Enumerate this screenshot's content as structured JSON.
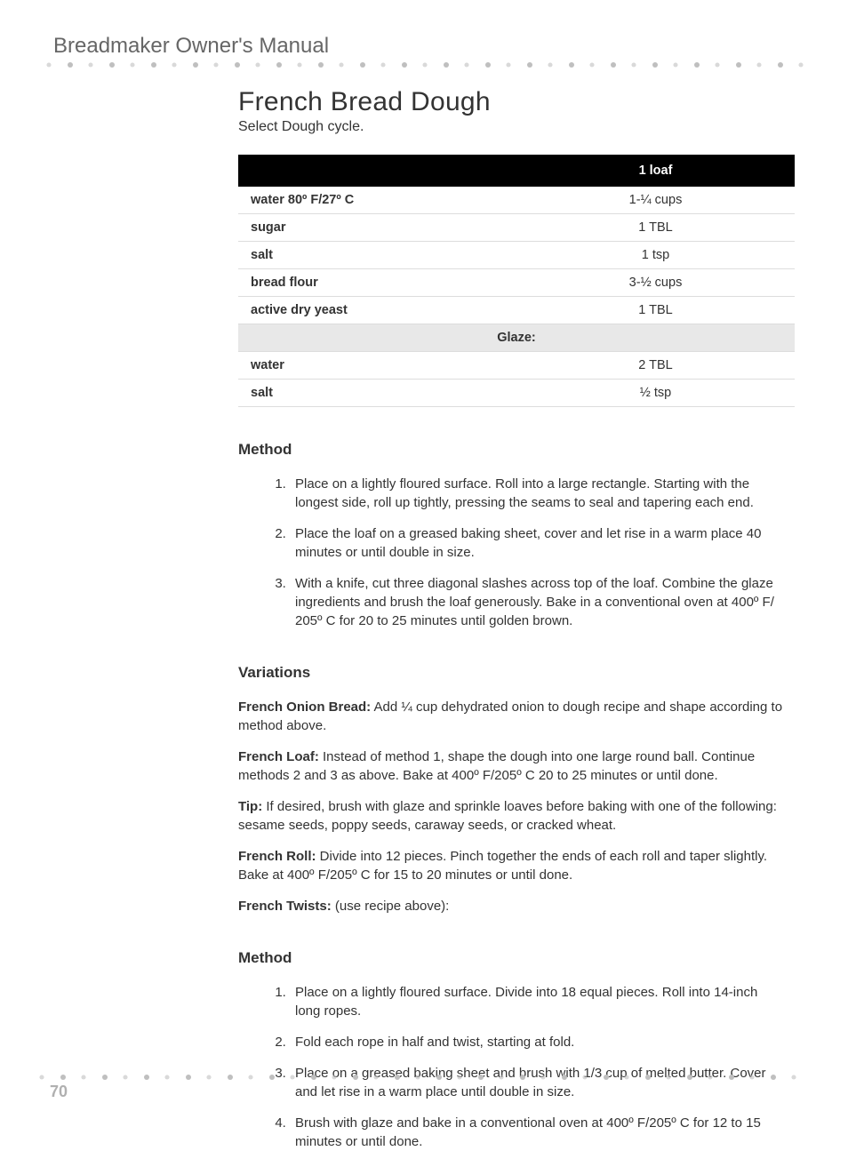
{
  "doc_header": "Breadmaker Owner's Manual",
  "page_number": "70",
  "recipe": {
    "title": "French Bread Dough",
    "subtitle": "Select Dough cycle.",
    "table": {
      "header_blank": "",
      "header_qty": "1 loaf",
      "rows": [
        {
          "label": "water 80º F/27º C",
          "qty": "1-¼ cups",
          "section": false
        },
        {
          "label": "sugar",
          "qty": "1 TBL",
          "section": false
        },
        {
          "label": "salt",
          "qty": "1 tsp",
          "section": false
        },
        {
          "label": "bread flour",
          "qty": "3-½ cups",
          "section": false
        },
        {
          "label": "active dry yeast",
          "qty": "1 TBL",
          "section": false
        },
        {
          "label": "Glaze:",
          "qty": "",
          "section": true
        },
        {
          "label": "water",
          "qty": "2 TBL",
          "section": false
        },
        {
          "label": "salt",
          "qty": "½ tsp",
          "section": false
        }
      ]
    },
    "method1_heading": "Method",
    "method1": [
      "Place on a lightly floured surface. Roll into a large rectangle. Starting with the longest side, roll up tightly, pressing the seams to seal and tapering each end.",
      "Place the loaf on a greased baking sheet, cover and let rise in a warm place 40 minutes or until double in size.",
      "With a knife, cut three diagonal slashes across top of the loaf. Combine the glaze ingredients and brush the loaf generously. Bake in a conventional oven at 400º F/ 205º C for 20 to 25 minutes until golden brown."
    ],
    "variations_heading": "Variations",
    "variations": [
      {
        "label": "French Onion Bread:",
        "text": " Add ¼ cup dehydrated onion to dough recipe and shape according to method above."
      },
      {
        "label": "French Loaf:",
        "text": " Instead of method 1, shape the dough into one large round ball. Continue methods 2 and 3 as above. Bake at 400º F/205º C 20 to 25 minutes or until done."
      },
      {
        "label": "Tip:",
        "text": " If desired, brush with glaze and sprinkle loaves before baking with one of the following: sesame seeds, poppy seeds, caraway seeds, or cracked wheat."
      },
      {
        "label": "French Roll:",
        "text": " Divide into 12 pieces. Pinch together the ends of each roll and taper slightly. Bake at 400º F/205º C for 15 to 20 minutes or until done."
      },
      {
        "label": "French Twists:",
        "text": " (use recipe above):"
      }
    ],
    "method2_heading": "Method",
    "method2": [
      "Place on a lightly floured surface. Divide into 18 equal pieces. Roll into 14-inch long ropes.",
      "Fold each rope in half and twist, starting at fold.",
      "Place on a greased baking sheet and brush with 1/3 cup of melted butter. Cover and let rise in a warm place until double in size.",
      "Brush with glaze and bake in a conventional oven at 400º F/205º C for 12 to 15 minutes or until done."
    ]
  },
  "style": {
    "header_color": "#666666",
    "text_color": "#333333",
    "dot_color": "#bfbfbf",
    "table_header_bg": "#000000",
    "table_header_fg": "#ffffff",
    "section_row_bg": "#e8e8e8",
    "row_border": "#dddddd"
  }
}
